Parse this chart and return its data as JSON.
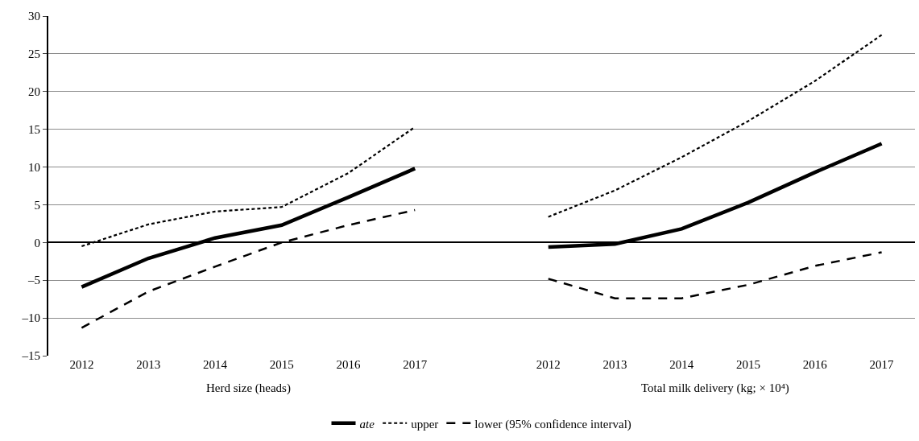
{
  "chart_data": {
    "type": "line",
    "categories": [
      "2012",
      "2013",
      "2014",
      "2015",
      "2016",
      "2017",
      null,
      "2012",
      "2013",
      "2014",
      "2015",
      "2016",
      "2017"
    ],
    "series": [
      {
        "name": "ate",
        "color": "#000000",
        "line_style": "solid",
        "values": [
          -5.9,
          -2.1,
          0.6,
          2.3,
          6.0,
          9.8,
          null,
          -0.6,
          -0.2,
          1.8,
          5.3,
          9.3,
          13.1
        ]
      },
      {
        "name": "upper",
        "color": "#000000",
        "line_style": "dotted",
        "values": [
          -0.5,
          2.4,
          4.1,
          4.7,
          9.2,
          15.3,
          null,
          3.4,
          6.9,
          11.3,
          16.1,
          21.4,
          27.5
        ]
      },
      {
        "name": "lower (95% confidence interval)",
        "color": "#000000",
        "line_style": "dashed",
        "values": [
          -11.3,
          -6.5,
          -3.2,
          0.0,
          2.3,
          4.3,
          null,
          -4.8,
          -7.4,
          -7.4,
          -5.6,
          -3.1,
          -1.3
        ]
      }
    ],
    "annotations": [
      "Herd size (heads)",
      "Total milk delivery (kg; × 10⁴)"
    ],
    "ylim": [
      -15,
      30
    ],
    "yticks": [
      {
        "value": -15,
        "label": "–15"
      },
      {
        "value": -10,
        "label": "–10"
      },
      {
        "value": -5,
        "label": "–5"
      },
      0,
      5,
      10,
      15,
      20,
      25,
      30
    ],
    "grid": "y",
    "legend": "bottom",
    "marker": "none"
  }
}
